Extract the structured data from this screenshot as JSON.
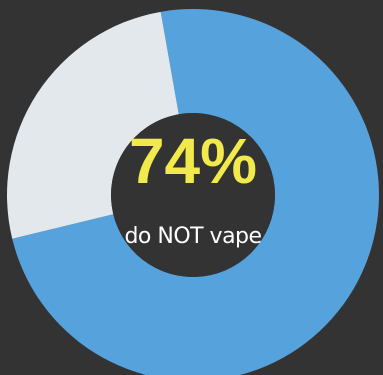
{
  "chart_data": {
    "type": "pie",
    "categories": [
      "do NOT vape",
      null
    ],
    "values": [
      74,
      26
    ],
    "value_labels": [
      "74%",
      null
    ],
    "colors": [
      "#55a2dd",
      "#e2e8ec"
    ]
  }
}
